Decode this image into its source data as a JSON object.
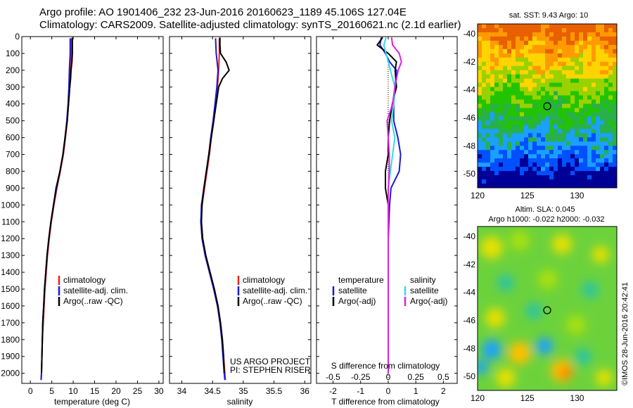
{
  "header": {
    "line1": "Argo profile: AO 1901406_232 23-Jun-2016 20160623_1189 45.106S 127.04E",
    "line2": "Climatology: CARS2009. Satellite-adjusted climatology: synTS_20160621.nc (2.1d earlier)"
  },
  "credits": {
    "project": "US ARGO PROJECT",
    "pi": "PI: STEPHEN RISER",
    "imos": "©IMOS 28-Jun-2016 20:42:41"
  },
  "colors": {
    "climatology": "#e3241b",
    "satellite": "#1a1ad6",
    "argo": "#000000",
    "sal_satellite": "#33dde6",
    "sal_argo": "#e020e0"
  },
  "chart_data": [
    {
      "type": "line",
      "id": "temperature",
      "xlabel": "temperature (deg C)",
      "ylabel": "",
      "xlim": [
        -2,
        31
      ],
      "ylim": [
        2060,
        0
      ],
      "xticks": [
        0,
        5,
        10,
        15,
        20,
        25,
        30
      ],
      "yticks": [
        0,
        100,
        200,
        300,
        400,
        500,
        600,
        700,
        800,
        900,
        1000,
        1100,
        1200,
        1300,
        1400,
        1500,
        1600,
        1700,
        1800,
        1900,
        2000
      ],
      "legend": [
        "climatology",
        "satellite-adj. clim.",
        "Argo(..raw -QC)"
      ],
      "series": [
        {
          "name": "climatology",
          "color": "#e3241b",
          "depth": [
            10,
            100,
            200,
            300,
            400,
            500,
            600,
            700,
            800,
            900,
            1000,
            1100,
            1200,
            1300,
            1400,
            1500,
            1600,
            1700,
            1800,
            1900,
            2000,
            2040
          ],
          "values": [
            9.6,
            9.5,
            9.4,
            9.2,
            8.9,
            8.6,
            8.2,
            7.7,
            7.0,
            6.2,
            5.5,
            4.9,
            4.4,
            4.0,
            3.7,
            3.4,
            3.2,
            3.0,
            2.8,
            2.7,
            2.6,
            2.5
          ]
        },
        {
          "name": "satellite-adj. clim.",
          "color": "#1a1ad6",
          "depth": [
            10,
            100,
            200,
            300,
            400,
            500,
            600,
            700,
            800,
            900,
            1000,
            1100,
            1200,
            1300,
            1400,
            1500,
            1600,
            1700,
            1800,
            1900,
            2000,
            2040
          ],
          "values": [
            9.3,
            9.3,
            9.1,
            9.0,
            8.8,
            8.5,
            8.1,
            7.6,
            6.9,
            6.1,
            5.4,
            4.8,
            4.3,
            3.9,
            3.6,
            3.3,
            3.1,
            2.9,
            2.8,
            2.7,
            2.6,
            2.5
          ]
        },
        {
          "name": "Argo(..raw -QC)",
          "color": "#000000",
          "depth": [
            5,
            50,
            100,
            150,
            200,
            250,
            300,
            400,
            500,
            600,
            700,
            800,
            900,
            1000,
            1100,
            1200,
            1300,
            1400,
            1500,
            1600,
            1700,
            1800,
            1900,
            2000
          ],
          "values": [
            9.8,
            9.8,
            9.8,
            9.7,
            9.5,
            9.4,
            9.2,
            8.9,
            8.6,
            8.1,
            7.6,
            6.9,
            6.0,
            5.4,
            4.8,
            4.3,
            3.9,
            3.6,
            3.3,
            3.1,
            2.9,
            2.8,
            2.7,
            2.6
          ]
        }
      ]
    },
    {
      "type": "line",
      "id": "salinity",
      "xlabel": "salinity",
      "ylabel": "",
      "xlim": [
        33.8,
        36.1
      ],
      "ylim": [
        2060,
        0
      ],
      "xticks": [
        34,
        34.5,
        35,
        35.5,
        36
      ],
      "xticklabels": [
        "34",
        "34.5",
        "35",
        "35.5",
        "36"
      ],
      "legend": [
        "climatology",
        "satellite-adj. clim.",
        "Argo(..raw -QC)"
      ],
      "series": [
        {
          "name": "climatology",
          "color": "#e3241b",
          "depth": [
            10,
            100,
            200,
            300,
            400,
            500,
            600,
            700,
            800,
            900,
            1000,
            1100,
            1200,
            1300,
            1400,
            1500,
            1600,
            1700,
            1800,
            1900,
            2000,
            2040
          ],
          "values": [
            34.61,
            34.61,
            34.6,
            34.58,
            34.55,
            34.52,
            34.48,
            34.45,
            34.41,
            34.37,
            34.33,
            34.31,
            34.33,
            34.38,
            34.45,
            34.52,
            34.58,
            34.63,
            34.66,
            34.68,
            34.7,
            34.71
          ]
        },
        {
          "name": "satellite-adj. clim.",
          "color": "#1a1ad6",
          "depth": [
            10,
            100,
            200,
            300,
            400,
            500,
            600,
            700,
            800,
            900,
            1000,
            1100,
            1200,
            1300,
            1400,
            1500,
            1600,
            1700,
            1800,
            1900,
            2000,
            2040
          ],
          "values": [
            34.55,
            34.56,
            34.59,
            34.57,
            34.54,
            34.51,
            34.47,
            34.44,
            34.4,
            34.36,
            34.32,
            34.31,
            34.33,
            34.38,
            34.45,
            34.52,
            34.58,
            34.62,
            34.65,
            34.67,
            34.69,
            34.7
          ]
        },
        {
          "name": "Argo(..raw -QC)",
          "color": "#000000",
          "depth": [
            5,
            50,
            100,
            150,
            200,
            250,
            300,
            400,
            500,
            600,
            700,
            800,
            900,
            1000,
            1100,
            1200,
            1300,
            1400,
            1500,
            1600,
            1700,
            1800,
            1900,
            2000
          ],
          "values": [
            34.62,
            34.62,
            34.63,
            34.72,
            34.77,
            34.66,
            34.6,
            34.56,
            34.52,
            34.48,
            34.44,
            34.4,
            34.36,
            34.33,
            34.32,
            34.34,
            34.39,
            34.46,
            34.53,
            34.59,
            34.63,
            34.66,
            34.68,
            34.69
          ]
        }
      ]
    },
    {
      "type": "line",
      "id": "difference",
      "xlabel": "T difference from climatology",
      "x2label": "S difference from climatology",
      "ylabel": "",
      "xlim": [
        -2.6,
        2.5
      ],
      "ylim": [
        2060,
        0
      ],
      "xticks": [
        -2,
        -1,
        0,
        1,
        2
      ],
      "x2ticks": [
        -0.5,
        -0.25,
        0,
        0.25,
        0.5
      ],
      "legend_titles": [
        "temperature",
        "salinity"
      ],
      "legend": [
        "satellite",
        "Argo(-adj)",
        "satellite",
        "Argo(-adj)"
      ],
      "series": [
        {
          "name": "satellite",
          "group": "temperature",
          "color": "#1a1ad6",
          "depth": [
            5,
            50,
            100,
            150,
            200,
            300,
            400,
            500,
            600,
            700,
            800,
            900,
            1000,
            1200,
            1400,
            1600,
            1800,
            2000
          ],
          "values": [
            -0.25,
            -0.3,
            -0.1,
            0.05,
            0.3,
            0.25,
            0.2,
            0.2,
            0.35,
            0.45,
            0.4,
            0.1,
            0.05,
            0.0,
            0.0,
            0.0,
            0.0,
            0.0
          ]
        },
        {
          "name": "Argo(-adj)",
          "group": "temperature",
          "color": "#000000",
          "depth": [
            5,
            50,
            100,
            150,
            200,
            300,
            400,
            500,
            600,
            700,
            800,
            900,
            1000,
            1200,
            1400,
            1600,
            1800,
            2000
          ],
          "values": [
            -0.2,
            -0.4,
            0.0,
            0.3,
            0.25,
            0.3,
            0.15,
            0.05,
            0.0,
            0.0,
            -0.1,
            -0.1,
            0.0,
            0.0,
            0.0,
            0.0,
            0.0,
            0.0
          ]
        },
        {
          "name": "satellite",
          "group": "salinity",
          "color": "#33dde6",
          "depth": [
            5,
            50,
            100,
            150,
            200,
            300,
            400,
            500,
            600,
            700,
            800,
            900,
            1000,
            1200,
            1400,
            1600,
            1800,
            2000
          ],
          "values": [
            -0.02,
            -0.04,
            -0.02,
            0.0,
            0.02,
            0.06,
            0.05,
            0.03,
            0.06,
            0.04,
            0.02,
            0.0,
            0.0,
            0.0,
            0.0,
            0.0,
            0.0,
            0.0
          ]
        },
        {
          "name": "Argo(-adj)",
          "group": "salinity",
          "color": "#e020e0",
          "depth": [
            5,
            50,
            100,
            150,
            200,
            300,
            400,
            500,
            600,
            700,
            800,
            900,
            1000,
            1200,
            1400,
            1600,
            1800,
            2000
          ],
          "values": [
            0.03,
            0.04,
            0.1,
            0.12,
            0.09,
            0.06,
            0.04,
            -0.01,
            0.0,
            0.01,
            0.01,
            0.0,
            0.0,
            0.0,
            0.0,
            0.0,
            0.0,
            0.0
          ]
        }
      ]
    },
    {
      "type": "heatmap",
      "id": "sst_map",
      "title": "sat. SST: 9.43 Argo: 10",
      "xlim": [
        120,
        134
      ],
      "ylim": [
        -51,
        -39.3
      ],
      "xticks": [
        120,
        125,
        130
      ],
      "yticks": [
        -40,
        -42,
        -44,
        -46,
        -48,
        -50
      ],
      "marker": {
        "lon": 127.04,
        "lat": -45.106
      },
      "colorscale": [
        "#e86000",
        "#ff9a00",
        "#ffd400",
        "#9ad200",
        "#22c400",
        "#28b04a",
        "#1aa0ff",
        "#0050ff",
        "#000096"
      ]
    },
    {
      "type": "heatmap",
      "id": "sla_map",
      "title": "Altim. SLA: 0.045",
      "subtitle": "Argo h1000: -0.022 h2000: -0.032",
      "xlim": [
        120,
        134
      ],
      "ylim": [
        -51,
        -39.3
      ],
      "xticks": [
        120,
        125,
        130
      ],
      "yticks": [
        -40,
        -42,
        -44,
        -46,
        -48,
        -50
      ],
      "marker": {
        "lon": 127.04,
        "lat": -45.106
      },
      "colorscale": [
        "#1aa0ff",
        "#2ec4a0",
        "#40d040",
        "#a8e010",
        "#e8e000",
        "#ffc000",
        "#ff8000"
      ]
    }
  ]
}
